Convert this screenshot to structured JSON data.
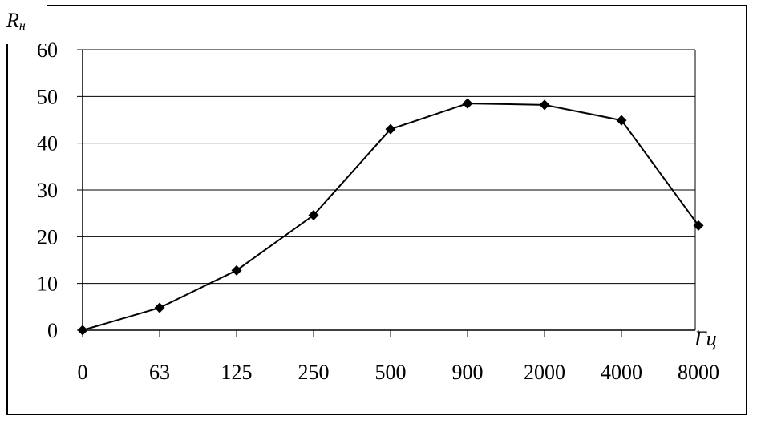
{
  "chart_data": {
    "type": "line",
    "categories": [
      "0",
      "63",
      "125",
      "250",
      "500",
      "900",
      "2000",
      "4000",
      "8000"
    ],
    "series": [
      {
        "values": [
          0,
          4.8,
          12.8,
          24.6,
          43.0,
          48.5,
          48.2,
          44.9,
          22.4
        ]
      }
    ],
    "ylabel": {
      "main": "R",
      "sub": "н"
    },
    "xlabel": "Гц",
    "ylim": [
      0,
      60
    ],
    "yticks": [
      "0",
      "10",
      "20",
      "30",
      "40",
      "50",
      "60"
    ],
    "grid": true,
    "legend": "none"
  },
  "colors": {
    "line": "#000000",
    "marker": "#000000",
    "grid": "#000000",
    "plot_border": "#808080"
  }
}
